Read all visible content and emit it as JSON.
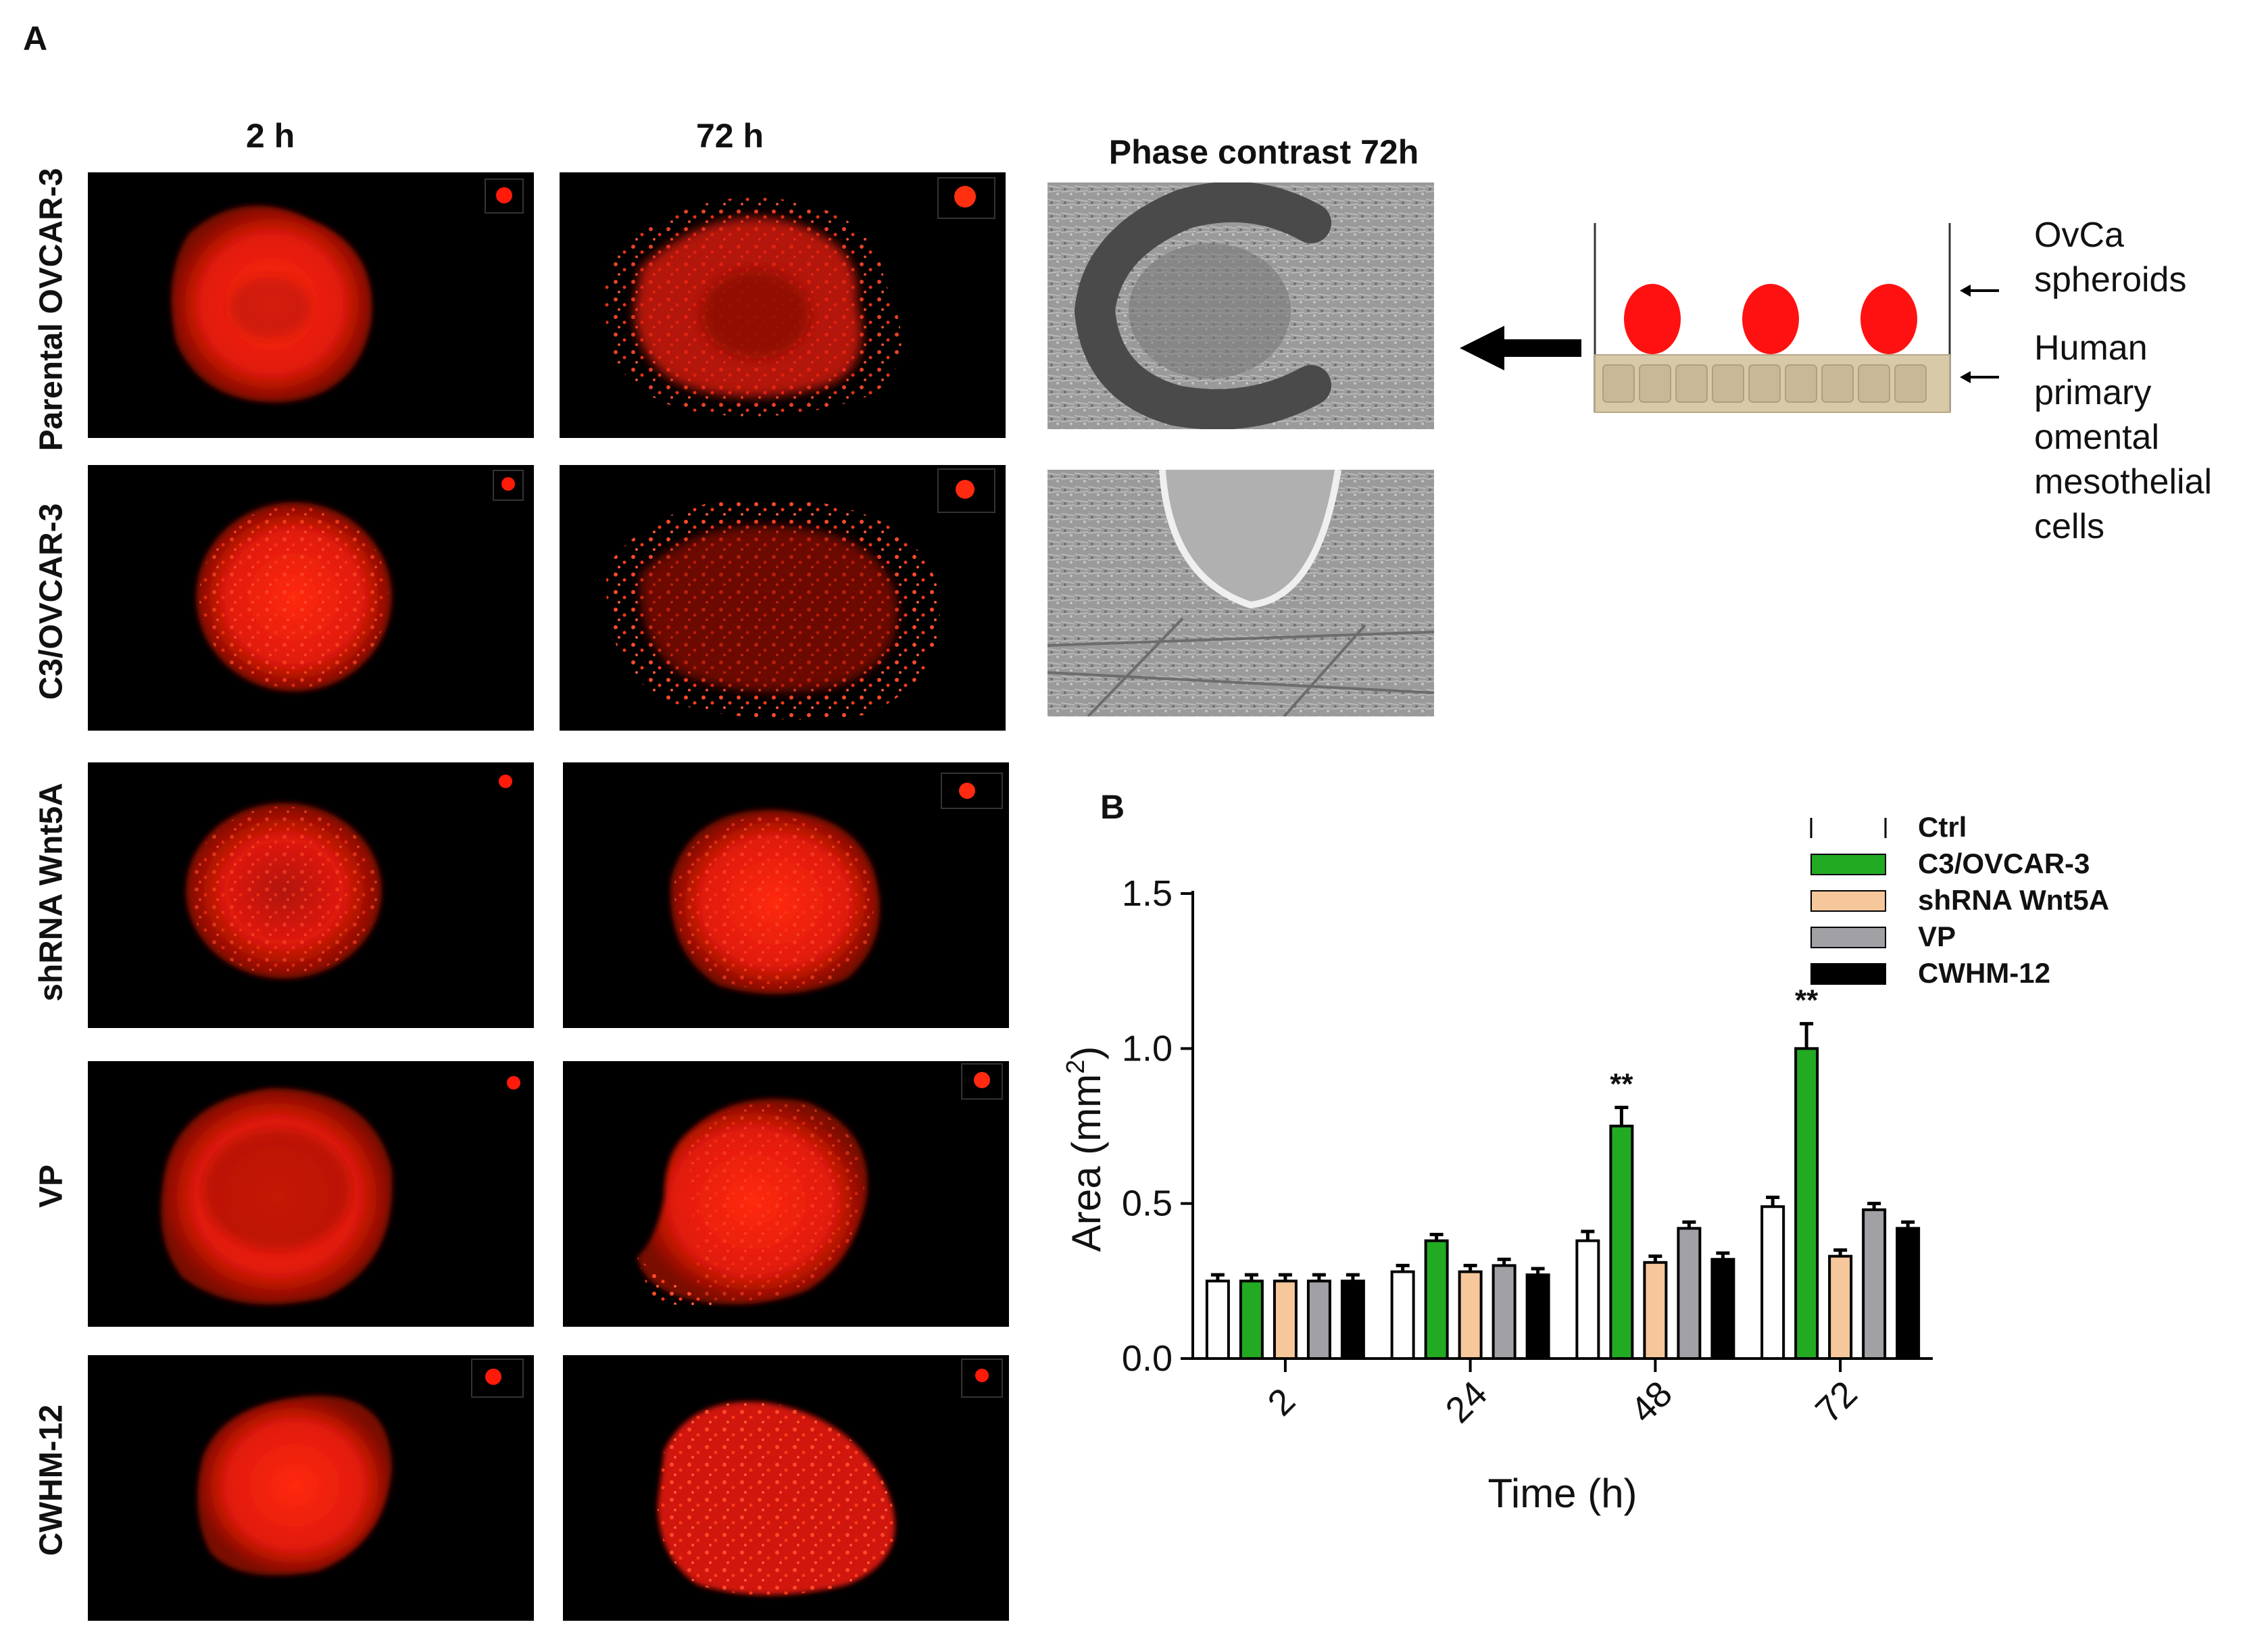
{
  "panel_a": {
    "letter": "A",
    "col_2h": "2 h",
    "col_72h": "72 h",
    "phase_title": "Phase contrast 72h",
    "rows": [
      "Parental OVCAR-3",
      "C3/OVCAR-3",
      "shRNA Wnt5A",
      "VP",
      "CWHM-12"
    ]
  },
  "schematic": {
    "label_spheroids": [
      "OvCa",
      "spheroids"
    ],
    "label_cells": [
      "Human",
      "primary",
      "omental",
      "mesothelial",
      "cells"
    ],
    "spheroid_color": "#ff1111",
    "layer_color": "#d8c9a8"
  },
  "panel_b": {
    "letter": "B"
  },
  "chart_data": {
    "type": "bar",
    "xlabel": "Time (h)",
    "ylabel": "Area (mm",
    "ylabel_sup": "2",
    "ylabel_close": ")",
    "categories": [
      "2",
      "24",
      "48",
      "72"
    ],
    "ylim": [
      0,
      1.5
    ],
    "yticks": [
      "0.0",
      "0.5",
      "1.0",
      "1.5"
    ],
    "ytick_values": [
      0,
      0.5,
      1.0,
      1.5
    ],
    "legend_position": "top-right",
    "series": [
      {
        "name": "Ctrl",
        "color": "#ffffff",
        "values": [
          0.25,
          0.28,
          0.38,
          0.49
        ],
        "errors": [
          0.02,
          0.02,
          0.03,
          0.03
        ]
      },
      {
        "name": "C3/OVCAR-3",
        "color": "#22aa22",
        "values": [
          0.25,
          0.38,
          0.75,
          1.0
        ],
        "errors": [
          0.02,
          0.02,
          0.06,
          0.08
        ]
      },
      {
        "name": "shRNA Wnt5A",
        "color": "#f5c79a",
        "values": [
          0.25,
          0.28,
          0.31,
          0.33
        ],
        "errors": [
          0.02,
          0.02,
          0.02,
          0.02
        ]
      },
      {
        "name": "VP",
        "color": "#a0a0a5",
        "values": [
          0.25,
          0.3,
          0.42,
          0.48
        ],
        "errors": [
          0.02,
          0.02,
          0.02,
          0.02
        ]
      },
      {
        "name": "CWHM-12",
        "color": "#000000",
        "values": [
          0.25,
          0.27,
          0.32,
          0.42
        ],
        "errors": [
          0.02,
          0.02,
          0.02,
          0.02
        ]
      }
    ],
    "annotations": [
      {
        "text": "**",
        "category": "48",
        "series": "C3/OVCAR-3"
      },
      {
        "text": "**",
        "category": "72",
        "series": "C3/OVCAR-3"
      }
    ]
  }
}
